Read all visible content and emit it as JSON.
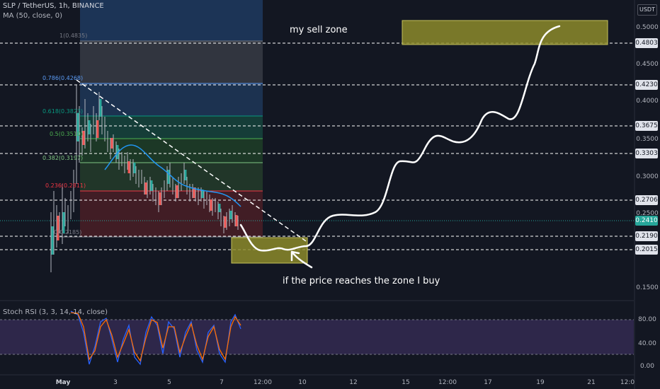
{
  "header": {
    "symbol_line": "SLP / TetherUS, 1h, BINANCE",
    "ma_line": "MA (50, close, 0)",
    "stoch_line": "Stoch RSI (3, 3, 14, 14, close)"
  },
  "annotations": {
    "sell_zone": "my sell zone",
    "buy_zone": "if the price reaches the zone I buy"
  },
  "price_axis": {
    "unit": "USDT",
    "labels": [
      "0.5000",
      "0.4500",
      "0.4000",
      "0.3500",
      "0.3000",
      "0.2500",
      "0.1500"
    ],
    "badges": [
      "0.4803",
      "0.4230",
      "0.3675",
      "0.3303",
      "0.2706",
      "0.2190",
      "0.2015"
    ],
    "current_price": "0.2410"
  },
  "rsi_axis": {
    "labels": [
      "80.00",
      "40.00",
      "0.00"
    ]
  },
  "time_axis": {
    "labels": [
      "May",
      "3",
      "5",
      "7",
      "12:00",
      "10",
      "12",
      "15",
      "12:00",
      "17",
      "19",
      "21",
      "12:0"
    ]
  },
  "fib_levels": [
    {
      "label": "1(0.4835)",
      "color": "#787b86"
    },
    {
      "label": "0.786(0.4268)",
      "color": "#5b9cf6"
    },
    {
      "label": "0.618(0.3823)",
      "color": "#089981"
    },
    {
      "label": "0.5(0.3510)",
      "color": "#4caf50"
    },
    {
      "label": "0.382(0.3197)",
      "color": "#81c784"
    },
    {
      "label": "0.236(0.2811)",
      "color": "#f23645"
    },
    {
      "label": "0(0.2185)",
      "color": "#787b86"
    }
  ],
  "colors": {
    "background": "#131722",
    "zone_fill": "#8c8a2a",
    "ma_line": "#2196f3",
    "stoch_k": "#2962ff",
    "stoch_d": "#ff6d00",
    "rsi_band": "#7e57c2"
  }
}
